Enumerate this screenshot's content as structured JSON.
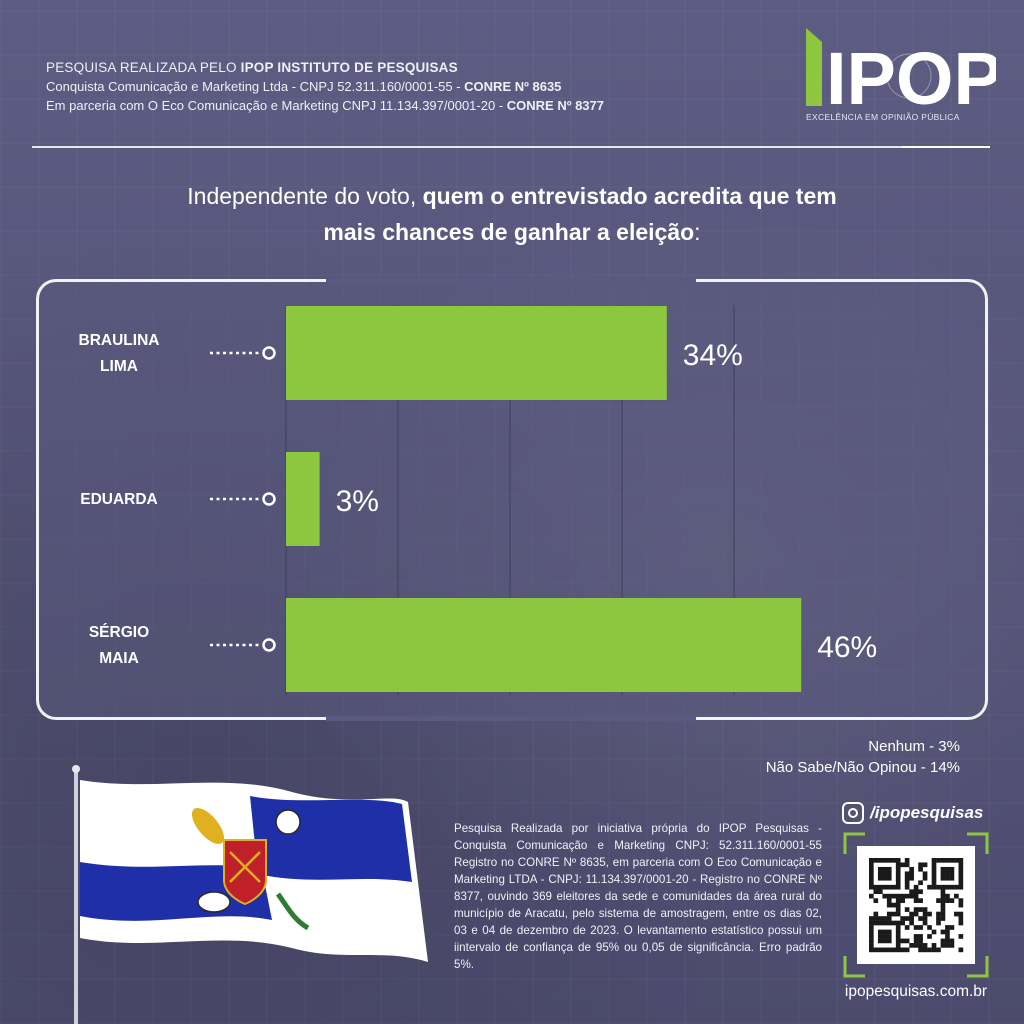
{
  "header": {
    "line1_prefix": "PESQUISA REALIZADA PELO ",
    "line1_bold": "IPOP INSTITUTO  DE PESQUISAS",
    "line2_text": "Conquista Comunicação e Marketing Ltda - CNPJ 52.311.160/0001-55 - ",
    "line2_bold": "CONRE Nº 8635",
    "line3_text": "Em parceria  com O  Eco Comunicação e Marketing CNPJ 11.134.397/0001-20  - ",
    "line3_bold": "CONRE Nº 8377"
  },
  "logo": {
    "wordmark": "IPOP",
    "tagline": "EXCELÊNCIA EM OPINIÃO PÚBLICA",
    "accent_color": "#8dc63f"
  },
  "title": {
    "part1": "Independente do voto, ",
    "part2_bold": "quem o entrevistado acredita que tem",
    "part3_bold": "mais chances de ganhar a eleição",
    "part4": ":"
  },
  "chart_data": {
    "type": "bar",
    "orientation": "horizontal",
    "categories": [
      [
        "BRAULINA",
        "LIMA"
      ],
      [
        "EDUARDA"
      ],
      [
        "SÉRGIO",
        "MAIA"
      ]
    ],
    "values": [
      34,
      3,
      46
    ],
    "value_labels": [
      "34%",
      "3%",
      "46%"
    ],
    "unit": "%",
    "xlim": [
      0,
      50
    ],
    "grid": true,
    "bar_color": "#8dc63f",
    "xlabel": "",
    "ylabel": ""
  },
  "notes": {
    "nenhum": "Nenhum - 3%",
    "nao_sabe": "Não Sabe/Não Opinou - 14%"
  },
  "disclaimer": "Pesquisa Realizada por iniciativa própria do IPOP Pesquisas - Conquista Comunicação e Marketing CNPJ: 52.311.160/0001-55 Registro no CONRE Nº 8635, em parceria com O Eco Comunicação e Marketing LTDA - CNPJ: 11.134.397/0001-20 - Registro no CONRE Nº 8377, ouvindo 369 eleitores da sede e comunidades da área rural do município de Aracatu, pelo sistema de amostragem, entre os dias 02, 03 e 04 de dezembro de 2023. O levantamento estatístico possui um iintervalo de confiança de 95% ou 0,05 de significância. Erro padrão 5%.",
  "social": {
    "instagram_handle": "/ipopesquisas",
    "website": "ipopesquisas.com.br"
  },
  "flag": {
    "colors": {
      "blue": "#1f2fa8",
      "white": "#ffffff",
      "red": "#c0202a",
      "gold": "#e0b020"
    }
  }
}
